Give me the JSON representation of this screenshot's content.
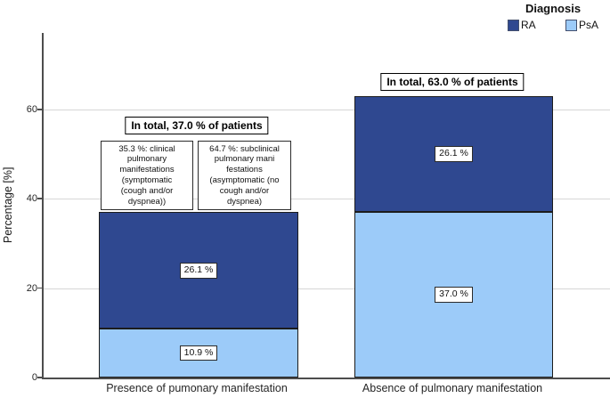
{
  "legend": {
    "title": "Diagnosis",
    "items": [
      {
        "label": "RA",
        "color": "#2f4890"
      },
      {
        "label": "PsA",
        "color": "#9ccbf9"
      }
    ]
  },
  "y_axis": {
    "label": "Percentage [%]"
  },
  "chart_data": {
    "type": "bar",
    "stacked": true,
    "categories": [
      "Presence of pumonary manifestation",
      "Absence of pulmonary manifestation"
    ],
    "series": [
      {
        "name": "RA",
        "color": "#2f4890",
        "values": [
          26.1,
          26.1
        ]
      },
      {
        "name": "PsA",
        "color": "#9ccbf9",
        "values": [
          10.9,
          37.0
        ]
      }
    ],
    "totals": [
      37.0,
      63.0
    ],
    "ylabel": "Percentage [%]",
    "ylim": [
      0,
      77
    ],
    "yticks": [
      0,
      20,
      40,
      60
    ],
    "gridlines": [
      20,
      40,
      60
    ],
    "legend_position": "top-right",
    "legend_title": "Diagnosis"
  },
  "annotations": {
    "total_labels": [
      "In total, 37.0 % of patients",
      "In total, 63.0 % of patients"
    ],
    "segment_labels": {
      "left_ra": "26.1 %",
      "left_psa": "10.9 %",
      "right_ra": "26.1 %",
      "right_psa": "37.0 %"
    },
    "breakdown_boxes": [
      "35.3 %: clinical\npulmonary\nmanifestations\n(symptomatic\n(cough and/or\ndyspnea))",
      "64.7 %: subclinical\npulmonary mani\nfestations\n(asymptomatic (no\ncough and/or\ndyspnea)"
    ]
  }
}
